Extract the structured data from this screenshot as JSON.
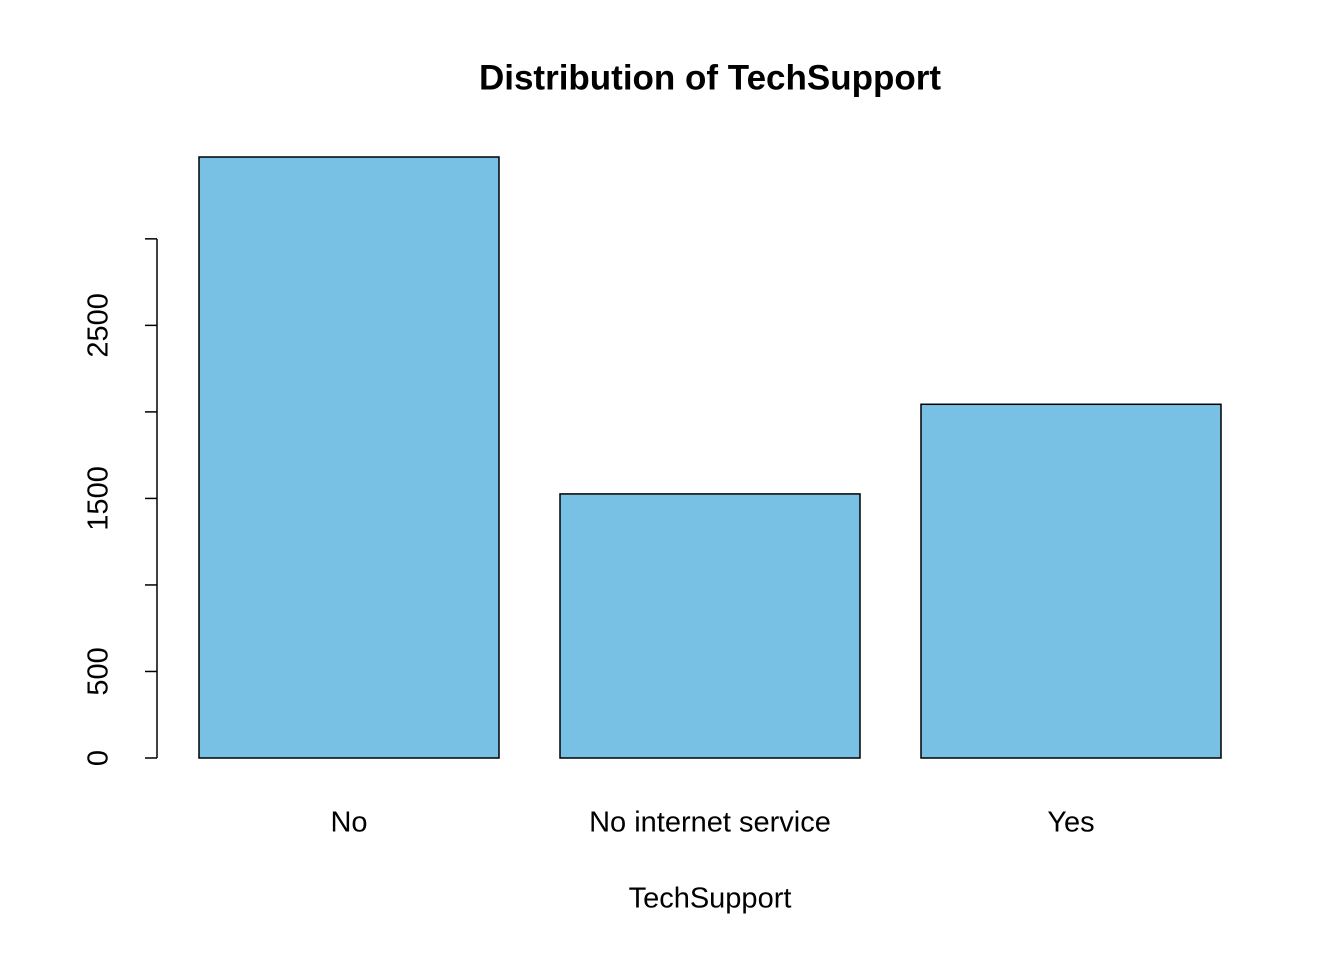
{
  "chart_data": {
    "type": "bar",
    "title": "Distribution of TechSupport",
    "x_label": "TechSupport",
    "categories": [
      "No",
      "No internet service",
      "Yes"
    ],
    "values": [
      3473,
      1526,
      2044
    ],
    "color": "#79c1e4",
    "ylim": [
      0,
      3473
    ],
    "yticks": [
      0,
      500,
      {
        "value": 1000,
        "label": null
      },
      1500,
      {
        "value": 2000,
        "label": null
      },
      2500,
      {
        "value": 3000,
        "label": null
      }
    ]
  }
}
